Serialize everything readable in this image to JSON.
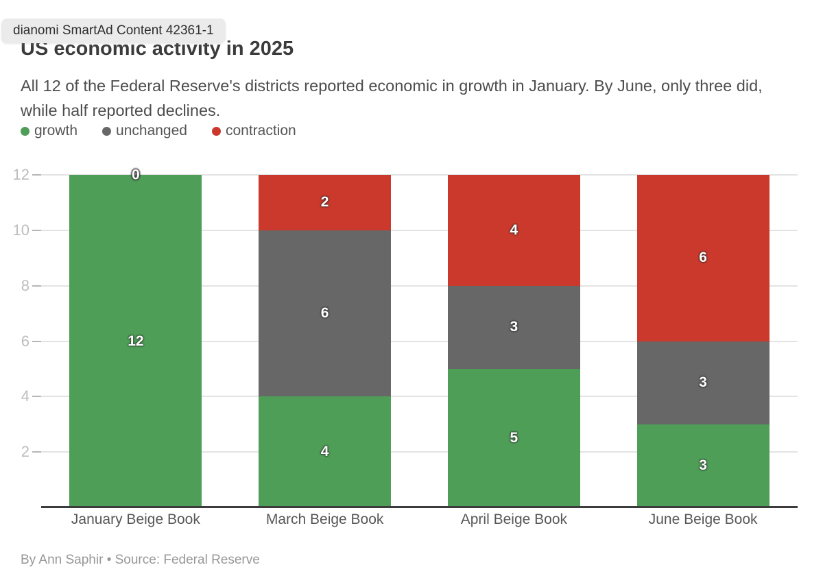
{
  "overlay": {
    "ad_tooltip": "dianomi SmartAd Content 42361-1"
  },
  "header": {
    "title": "US economic activity in 2025",
    "subtitle": "All 12 of the Federal Reserve's districts reported economic in growth in January. By June, only three did, while half reported declines."
  },
  "legend": {
    "items": [
      {
        "label": "growth",
        "color": "#4e9e57"
      },
      {
        "label": "unchanged",
        "color": "#676767"
      },
      {
        "label": "contraction",
        "color": "#cb392c"
      }
    ]
  },
  "chart_data": {
    "type": "bar",
    "stacked": true,
    "title": "US economic activity in 2025",
    "categories": [
      "January Beige Book",
      "March Beige Book",
      "April Beige Book",
      "June Beige Book"
    ],
    "series": [
      {
        "name": "growth",
        "color": "#4e9e57",
        "values": [
          12,
          4,
          5,
          3
        ]
      },
      {
        "name": "unchanged",
        "color": "#676767",
        "values": [
          0,
          6,
          3,
          3
        ]
      },
      {
        "name": "contraction",
        "color": "#cb392c",
        "values": [
          0,
          2,
          4,
          6
        ]
      }
    ],
    "ylim": [
      0,
      12
    ],
    "yticks": [
      2,
      4,
      6,
      8,
      10,
      12
    ],
    "grid": true,
    "legend_position": "top-left",
    "bar_label_style": "white value label centered in each segment; zero value shown at top of stack"
  },
  "footer": {
    "byline": "By Ann Saphir • Source: Federal Reserve"
  },
  "colors": {
    "growth": "#4e9e57",
    "unchanged": "#676767",
    "contraction": "#cb392c",
    "axis_label": "#bdbdbd",
    "gridline": "#e3e3e3",
    "baseline": "#3c3c3c",
    "background": "#ffffff"
  }
}
